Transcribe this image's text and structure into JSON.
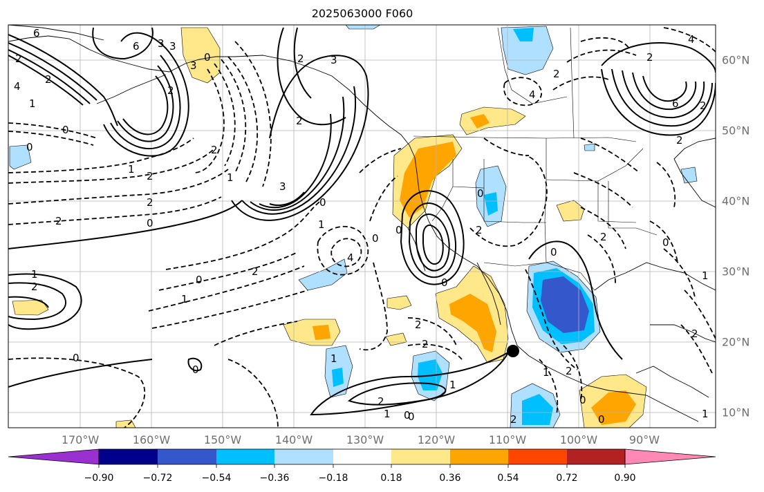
{
  "title": "2025063000 F060",
  "map": {
    "lon_labels": [
      "170°W",
      "160°W",
      "150°W",
      "140°W",
      "130°W",
      "120°W",
      "110°W",
      "100°W",
      "90°W"
    ],
    "lat_labels": [
      "60°N",
      "50°N",
      "40°N",
      "30°N",
      "20°N",
      "10°N"
    ],
    "contour_labels": [
      "6",
      "6",
      "3",
      "2",
      "2",
      "4",
      "1",
      "0",
      "0",
      "1",
      "2",
      "2",
      "0",
      "2",
      "0",
      "3",
      "3",
      "0",
      "2",
      "1",
      "0",
      "2",
      "2",
      "3",
      "1",
      "0",
      "3",
      "2",
      "4",
      "1",
      "0",
      "0",
      "4",
      "2",
      "4",
      "2",
      "6",
      "2",
      "0",
      "1",
      "2",
      "1",
      "0",
      "0",
      "2",
      "1",
      "2",
      "0",
      "2",
      "1",
      "2",
      "0",
      "1",
      "2",
      "2",
      "0",
      "0",
      "1",
      "2",
      "2",
      "0",
      "0",
      "2",
      "2",
      "1"
    ],
    "marker": "black-dot-marker"
  },
  "colorbar": {
    "ticks": [
      "−0.90",
      "−0.72",
      "−0.54",
      "−0.36",
      "−0.18",
      "0.18",
      "0.36",
      "0.54",
      "0.72",
      "0.90"
    ],
    "colors": {
      "lt_090": "#9b30d0",
      "b1": "#00008b",
      "b2": "#3457cc",
      "b3": "#00bfff",
      "b4": "#b0e0ff",
      "b5": "#ffffff",
      "b6": "#ffe88a",
      "b7": "#ffa500",
      "b8": "#ff4500",
      "b9": "#b22222",
      "gt_090": "#ff88b4"
    }
  }
}
